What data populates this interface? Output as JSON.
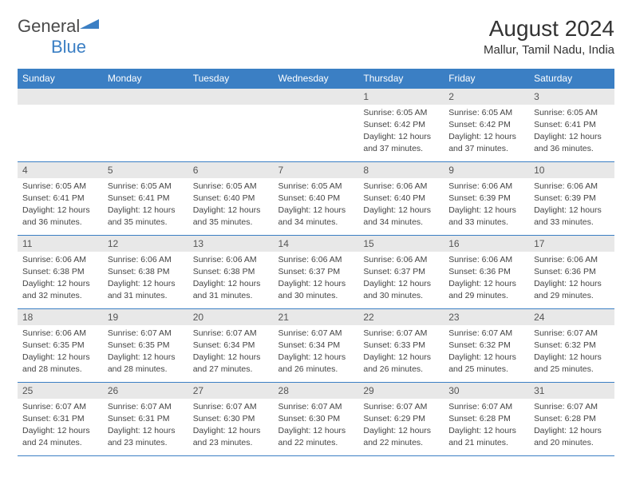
{
  "brand": {
    "text1": "General",
    "text2": "Blue"
  },
  "title": "August 2024",
  "location": "Mallur, Tamil Nadu, India",
  "colors": {
    "header_bg": "#3b7fc4",
    "header_fg": "#ffffff",
    "row_border": "#3b7fc4",
    "daynum_bg": "#e8e8e8",
    "text": "#333333"
  },
  "weekdays": [
    "Sunday",
    "Monday",
    "Tuesday",
    "Wednesday",
    "Thursday",
    "Friday",
    "Saturday"
  ],
  "weeks": [
    [
      null,
      null,
      null,
      null,
      {
        "n": "1",
        "sr": "6:05 AM",
        "ss": "6:42 PM",
        "dl": "12 hours and 37 minutes."
      },
      {
        "n": "2",
        "sr": "6:05 AM",
        "ss": "6:42 PM",
        "dl": "12 hours and 37 minutes."
      },
      {
        "n": "3",
        "sr": "6:05 AM",
        "ss": "6:41 PM",
        "dl": "12 hours and 36 minutes."
      }
    ],
    [
      {
        "n": "4",
        "sr": "6:05 AM",
        "ss": "6:41 PM",
        "dl": "12 hours and 36 minutes."
      },
      {
        "n": "5",
        "sr": "6:05 AM",
        "ss": "6:41 PM",
        "dl": "12 hours and 35 minutes."
      },
      {
        "n": "6",
        "sr": "6:05 AM",
        "ss": "6:40 PM",
        "dl": "12 hours and 35 minutes."
      },
      {
        "n": "7",
        "sr": "6:05 AM",
        "ss": "6:40 PM",
        "dl": "12 hours and 34 minutes."
      },
      {
        "n": "8",
        "sr": "6:06 AM",
        "ss": "6:40 PM",
        "dl": "12 hours and 34 minutes."
      },
      {
        "n": "9",
        "sr": "6:06 AM",
        "ss": "6:39 PM",
        "dl": "12 hours and 33 minutes."
      },
      {
        "n": "10",
        "sr": "6:06 AM",
        "ss": "6:39 PM",
        "dl": "12 hours and 33 minutes."
      }
    ],
    [
      {
        "n": "11",
        "sr": "6:06 AM",
        "ss": "6:38 PM",
        "dl": "12 hours and 32 minutes."
      },
      {
        "n": "12",
        "sr": "6:06 AM",
        "ss": "6:38 PM",
        "dl": "12 hours and 31 minutes."
      },
      {
        "n": "13",
        "sr": "6:06 AM",
        "ss": "6:38 PM",
        "dl": "12 hours and 31 minutes."
      },
      {
        "n": "14",
        "sr": "6:06 AM",
        "ss": "6:37 PM",
        "dl": "12 hours and 30 minutes."
      },
      {
        "n": "15",
        "sr": "6:06 AM",
        "ss": "6:37 PM",
        "dl": "12 hours and 30 minutes."
      },
      {
        "n": "16",
        "sr": "6:06 AM",
        "ss": "6:36 PM",
        "dl": "12 hours and 29 minutes."
      },
      {
        "n": "17",
        "sr": "6:06 AM",
        "ss": "6:36 PM",
        "dl": "12 hours and 29 minutes."
      }
    ],
    [
      {
        "n": "18",
        "sr": "6:06 AM",
        "ss": "6:35 PM",
        "dl": "12 hours and 28 minutes."
      },
      {
        "n": "19",
        "sr": "6:07 AM",
        "ss": "6:35 PM",
        "dl": "12 hours and 28 minutes."
      },
      {
        "n": "20",
        "sr": "6:07 AM",
        "ss": "6:34 PM",
        "dl": "12 hours and 27 minutes."
      },
      {
        "n": "21",
        "sr": "6:07 AM",
        "ss": "6:34 PM",
        "dl": "12 hours and 26 minutes."
      },
      {
        "n": "22",
        "sr": "6:07 AM",
        "ss": "6:33 PM",
        "dl": "12 hours and 26 minutes."
      },
      {
        "n": "23",
        "sr": "6:07 AM",
        "ss": "6:32 PM",
        "dl": "12 hours and 25 minutes."
      },
      {
        "n": "24",
        "sr": "6:07 AM",
        "ss": "6:32 PM",
        "dl": "12 hours and 25 minutes."
      }
    ],
    [
      {
        "n": "25",
        "sr": "6:07 AM",
        "ss": "6:31 PM",
        "dl": "12 hours and 24 minutes."
      },
      {
        "n": "26",
        "sr": "6:07 AM",
        "ss": "6:31 PM",
        "dl": "12 hours and 23 minutes."
      },
      {
        "n": "27",
        "sr": "6:07 AM",
        "ss": "6:30 PM",
        "dl": "12 hours and 23 minutes."
      },
      {
        "n": "28",
        "sr": "6:07 AM",
        "ss": "6:30 PM",
        "dl": "12 hours and 22 minutes."
      },
      {
        "n": "29",
        "sr": "6:07 AM",
        "ss": "6:29 PM",
        "dl": "12 hours and 22 minutes."
      },
      {
        "n": "30",
        "sr": "6:07 AM",
        "ss": "6:28 PM",
        "dl": "12 hours and 21 minutes."
      },
      {
        "n": "31",
        "sr": "6:07 AM",
        "ss": "6:28 PM",
        "dl": "12 hours and 20 minutes."
      }
    ]
  ],
  "labels": {
    "sunrise": "Sunrise:",
    "sunset": "Sunset:",
    "daylight": "Daylight:"
  }
}
